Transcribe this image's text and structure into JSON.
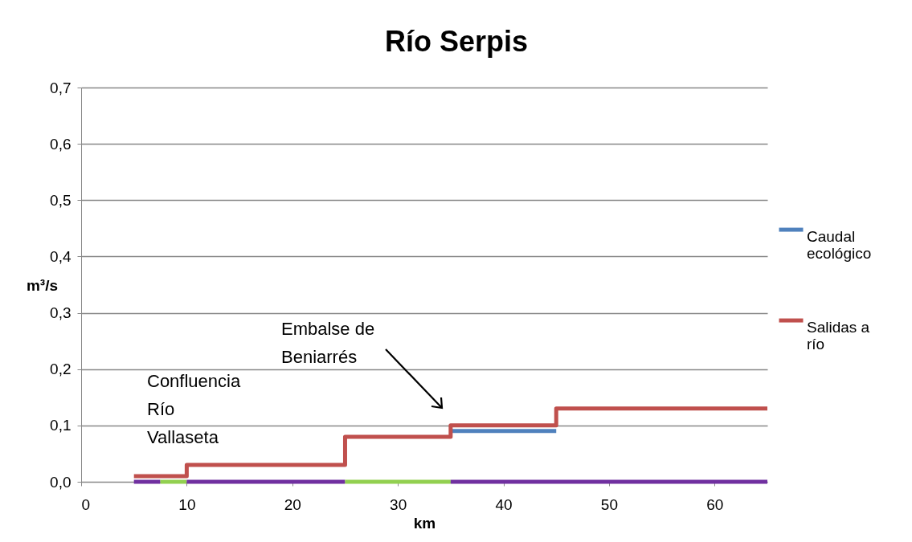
{
  "chart_data": {
    "type": "step",
    "title": "Río Serpis",
    "xlabel": "km",
    "ylabel": "m³/s",
    "x": [
      5,
      10,
      25,
      35,
      45,
      65
    ],
    "series": [
      {
        "name": "Caudal ecológico",
        "color": "#4f81bd",
        "values": [
          null,
          null,
          null,
          0.09,
          0.09,
          null
        ]
      },
      {
        "name": "Salidas a río",
        "color": "#c0504d",
        "values": [
          0.01,
          0.03,
          0.08,
          0.1,
          0.13,
          0.13
        ]
      },
      {
        "type": "line",
        "color": "#7030a0",
        "x": [
          5,
          7.5
        ],
        "values": [
          0,
          0
        ]
      },
      {
        "type": "line",
        "color": "#92d050",
        "x": [
          7.5,
          10
        ],
        "values": [
          0,
          0
        ]
      },
      {
        "type": "line",
        "color": "#7030a0",
        "x": [
          10,
          25
        ],
        "values": [
          0,
          0
        ]
      },
      {
        "type": "line",
        "color": "#92d050",
        "x": [
          25,
          35
        ],
        "values": [
          0,
          0
        ]
      },
      {
        "type": "line",
        "color": "#7030a0",
        "x": [
          35,
          65
        ],
        "values": [
          0,
          0
        ]
      }
    ],
    "xlim": [
      0,
      65
    ],
    "xticks": [
      0,
      10,
      20,
      30,
      40,
      50,
      60
    ],
    "ylim": [
      0,
      0.7
    ],
    "yticks": [
      {
        "value": 0,
        "label": "0,0"
      },
      {
        "value": 0.1,
        "label": "0,1"
      },
      {
        "value": 0.2,
        "label": "0,2"
      },
      {
        "value": 0.3,
        "label": "0,3"
      },
      {
        "value": 0.4,
        "label": "0,4"
      },
      {
        "value": 0.5,
        "label": "0,5"
      },
      {
        "value": 0.6,
        "label": "0,6"
      },
      {
        "value": 0.7,
        "label": "0,7"
      }
    ],
    "grid": "y",
    "legend": "right",
    "annotations": [
      "Confluencia Río Vallaseta",
      "Embalse de Beniarrés"
    ]
  }
}
